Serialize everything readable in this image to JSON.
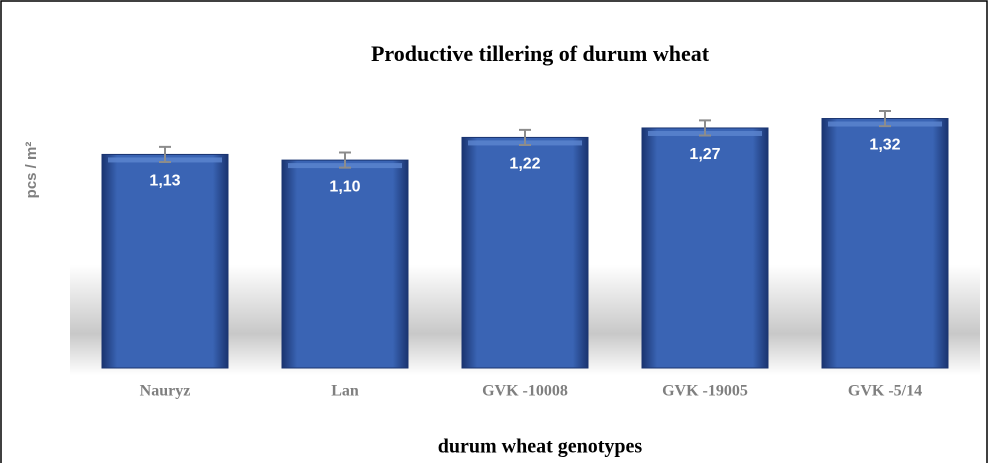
{
  "chart_data": {
    "type": "bar",
    "title": "Productive tillering of durum wheat",
    "y_label": "pcs / m²",
    "x_label": "durum wheat genotypes",
    "categories": [
      "Nauryz",
      "Lan",
      "GVK -10008",
      "GVK -19005",
      "GVK -5/14"
    ],
    "values": [
      1.13,
      1.1,
      1.22,
      1.27,
      1.32
    ],
    "value_labels": [
      "1,13",
      "1,10",
      "1,22",
      "1,27",
      "1,32"
    ],
    "errors": [
      0.04,
      0.04,
      0.04,
      0.04,
      0.04
    ],
    "color": "#2e57a3",
    "ylim": [
      0,
      1.45
    ]
  }
}
